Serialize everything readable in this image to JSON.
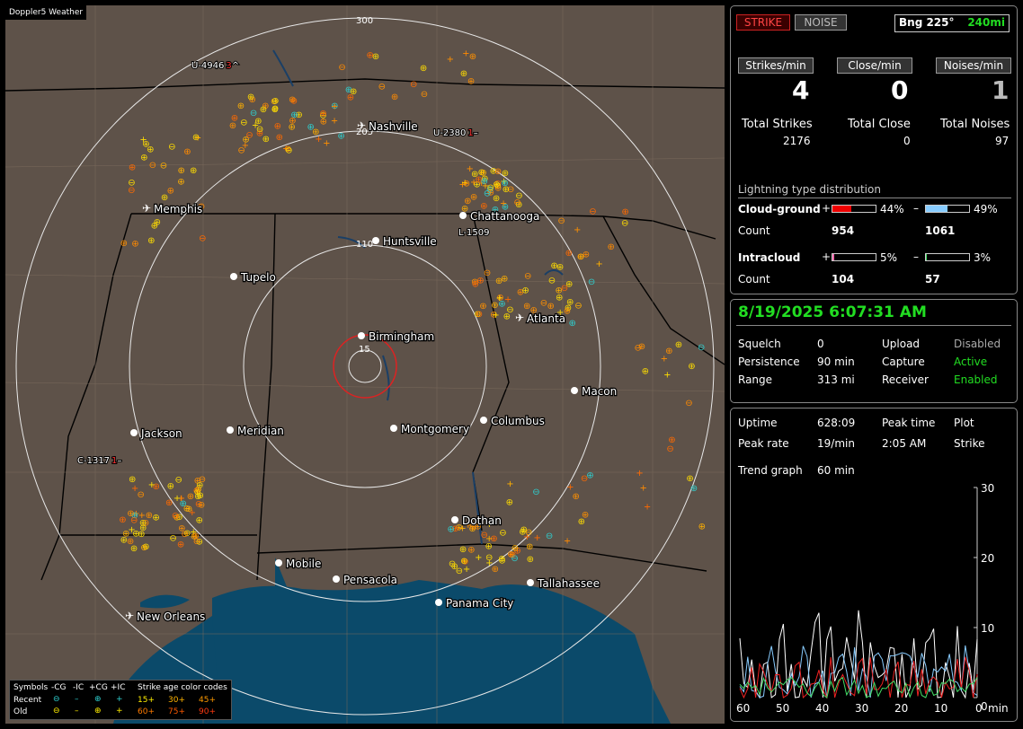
{
  "brand": "Doppler5 Weather",
  "map": {
    "ring_labels": [
      "300",
      "205",
      "110",
      "15"
    ],
    "cities": [
      {
        "name": "Nashville",
        "airport": true
      },
      {
        "name": "Memphis",
        "airport": true
      },
      {
        "name": "Chattanooga",
        "airport": false
      },
      {
        "name": "Huntsville",
        "airport": false
      },
      {
        "name": "Tupelo",
        "airport": false
      },
      {
        "name": "Atlanta",
        "airport": true
      },
      {
        "name": "Birmingham",
        "airport": false
      },
      {
        "name": "Macon",
        "airport": false
      },
      {
        "name": "Jackson",
        "airport": false
      },
      {
        "name": "Meridian",
        "airport": false
      },
      {
        "name": "Montgomery",
        "airport": false
      },
      {
        "name": "Columbus",
        "airport": false
      },
      {
        "name": "Dothan",
        "airport": false
      },
      {
        "name": "Mobile",
        "airport": false
      },
      {
        "name": "Pensacola",
        "airport": false
      },
      {
        "name": "Tallahassee",
        "airport": false
      },
      {
        "name": "Panama City",
        "airport": false
      },
      {
        "name": "New Orleans",
        "airport": true
      }
    ],
    "markers": [
      {
        "text": "U-4946",
        "mid": "3",
        "tail": "^"
      },
      {
        "text": "U-2380",
        "mid": "1",
        "tail": "–"
      },
      {
        "text": "L-1509",
        "mid": "",
        "tail": ""
      },
      {
        "text": "C-1317",
        "mid": "1",
        "tail": "–"
      }
    ]
  },
  "legend": {
    "symbols": "Symbols",
    "cg_minus": "-CG",
    "ic_minus": "-IC",
    "cg_plus": "+CG",
    "ic_plus": "+IC",
    "age_title": "Strike age color codes",
    "recent": "Recent",
    "old": "Old",
    "recent_codes": [
      "15+",
      "30+",
      "45+"
    ],
    "old_codes": [
      "60+",
      "75+",
      "90+"
    ]
  },
  "status": {
    "strike_btn": "STRIKE",
    "noise_btn": "NOISE",
    "bearing": "Bng 225°",
    "range": "240mi",
    "rate_labels": [
      "Strikes/min",
      "Close/min",
      "Noises/min"
    ],
    "rates": [
      "4",
      "0",
      "1"
    ],
    "total_labels": [
      "Total Strikes",
      "Total Close",
      "Total Noises"
    ],
    "totals": [
      "2176",
      "0",
      "97"
    ],
    "dist_title": "Lightning type distribution",
    "cg_label": "Cloud-ground",
    "ic_label": "Intracloud",
    "count_label": "Count",
    "cg_plus_pct": "44%",
    "cg_minus_pct": "49%",
    "ic_plus_pct": "5%",
    "ic_minus_pct": "3%",
    "cg_plus_count": "954",
    "cg_minus_count": "1061",
    "ic_plus_count": "104",
    "ic_minus_count": "57",
    "cg_plus_frac": 0.44,
    "cg_minus_frac": 0.49,
    "ic_plus_frac": 0.05,
    "ic_minus_frac": 0.03
  },
  "info": {
    "datetime": "8/19/2025 6:07:31 AM",
    "rows": [
      {
        "k": "Squelch",
        "v": "0",
        "k2": "Upload",
        "v2": "Disabled",
        "c2": "#aaaaaa"
      },
      {
        "k": "Persistence",
        "v": "90 min",
        "k2": "Capture",
        "v2": "Active",
        "c2": "#22dd22"
      },
      {
        "k": "Range",
        "v": "313 mi",
        "k2": "Receiver",
        "v2": "Enabled",
        "c2": "#22dd22"
      }
    ]
  },
  "trend": {
    "uptime_label": "Uptime",
    "uptime": "628:09",
    "peak_time_label": "Peak time",
    "peak_time": "2:05 AM",
    "plot_label": "Plot",
    "peak_rate_label": "Peak rate",
    "peak_rate": "19/min",
    "plot_value": "Strike",
    "trend_label": "Trend graph",
    "trend_value": "60 min",
    "y_ticks": [
      "30",
      "20",
      "10",
      "0"
    ],
    "x_ticks": [
      "60",
      "50",
      "40",
      "30",
      "20",
      "10",
      "0"
    ],
    "x_unit": "min"
  },
  "colors": {
    "accent": "#22dd22",
    "strike": "#cc2222",
    "ocean": "#0b4a6a",
    "land": "#5e5249"
  }
}
